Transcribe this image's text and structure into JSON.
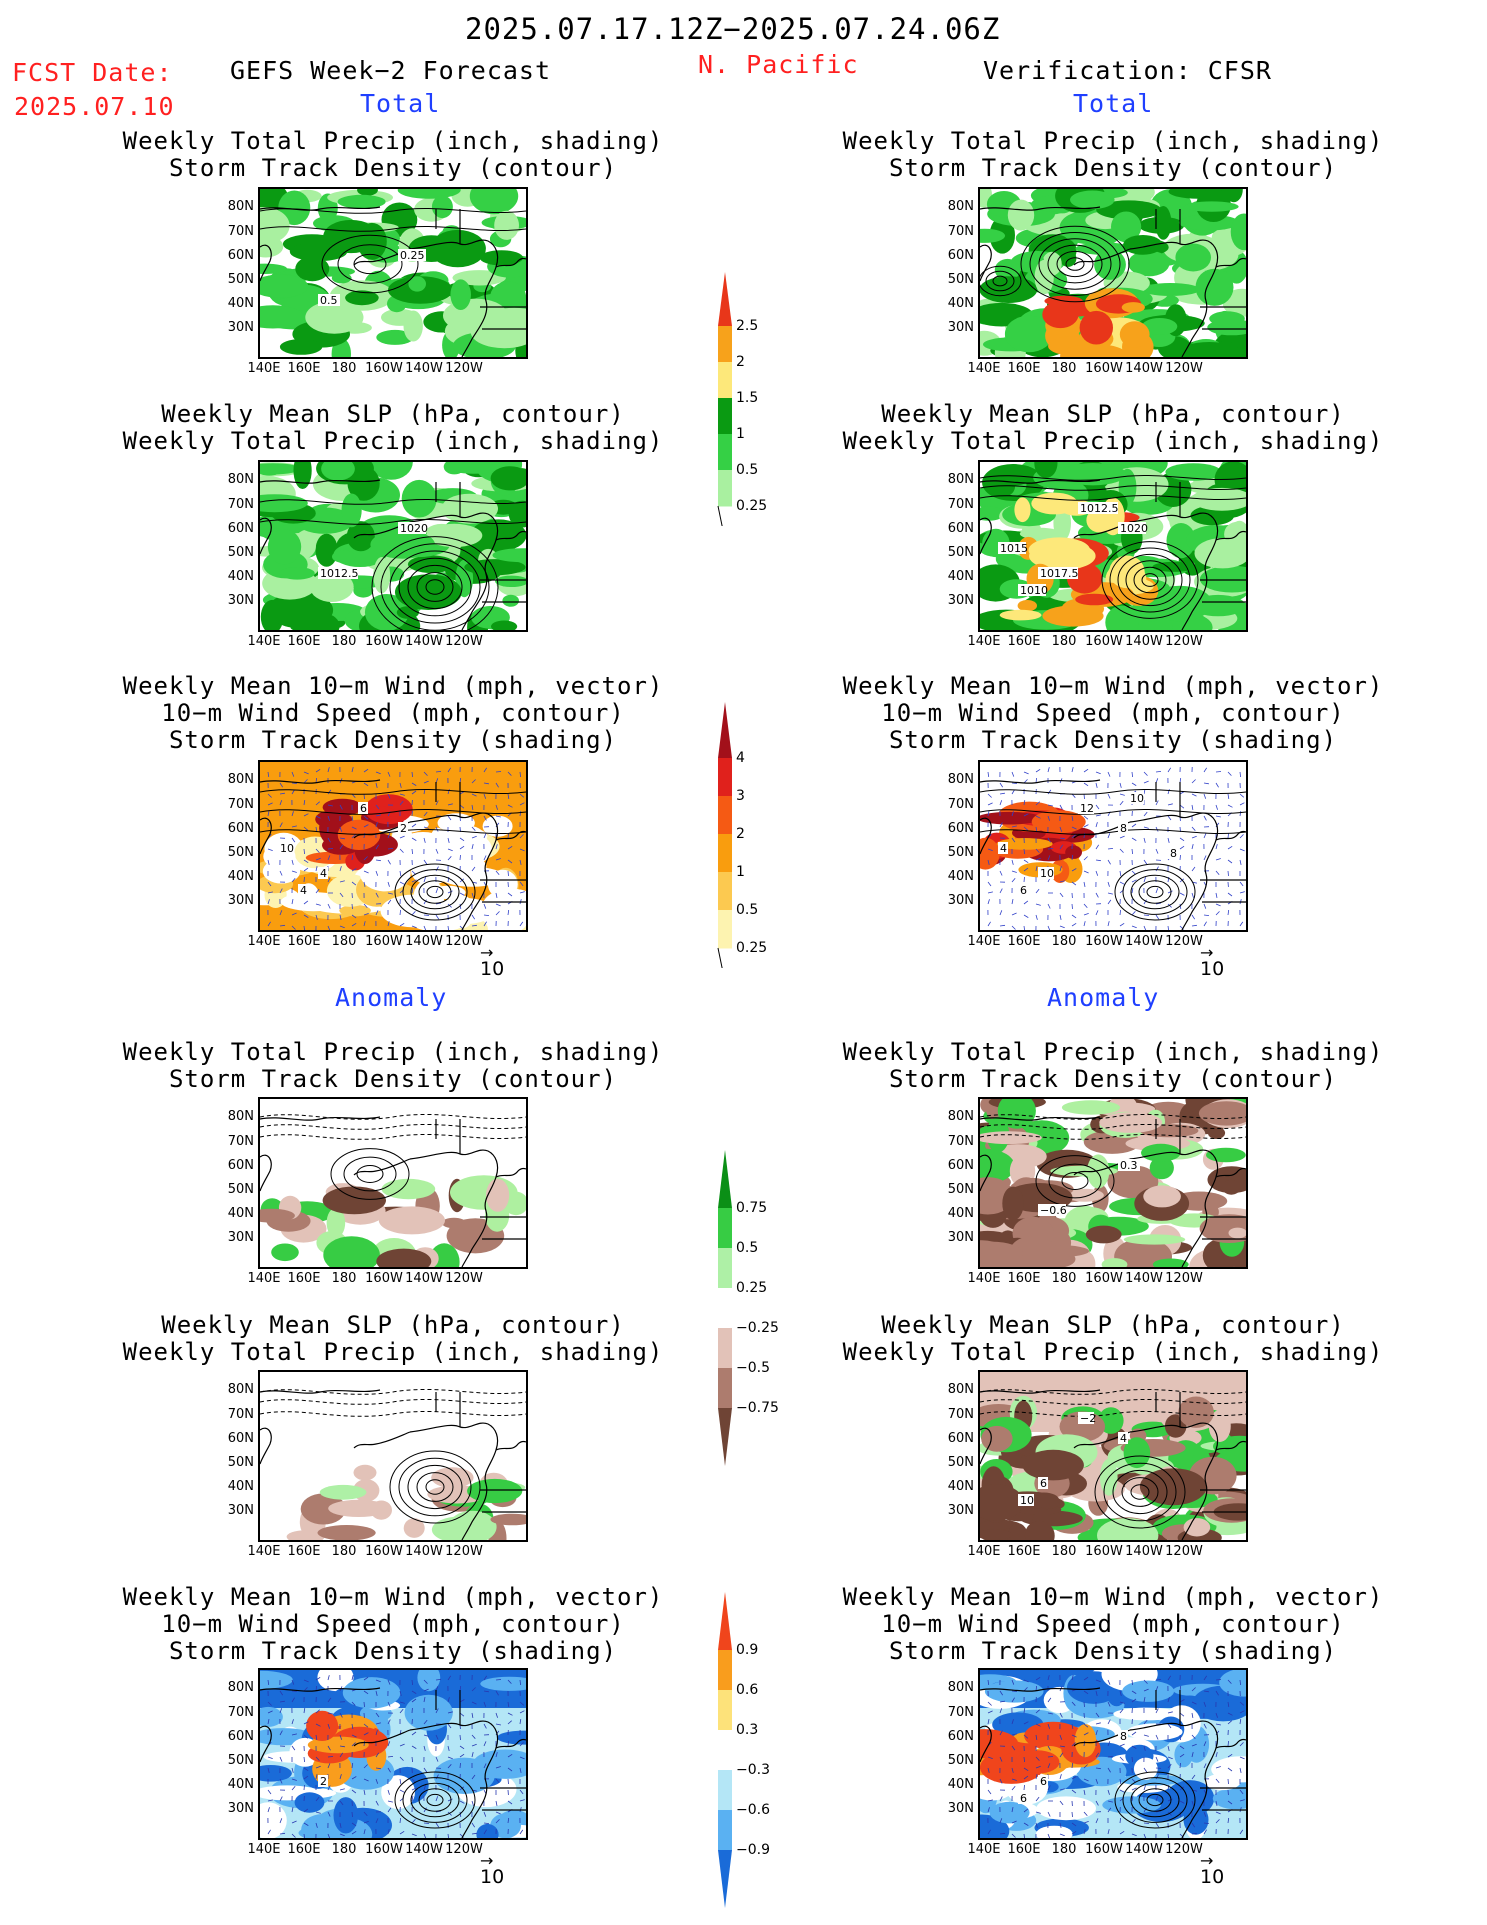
{
  "header": {
    "date_range": "2025.07.17.12Z−2025.07.24.06Z",
    "fcst_label": "FCST Date:",
    "fcst_date": "2025.07.10",
    "left_title": "GEFS Week−2 Forecast",
    "region": "N. Pacific",
    "right_title": "Verification: CFSR"
  },
  "sections": {
    "total": "Total",
    "anomaly": "Anomaly"
  },
  "panel_titles": {
    "precip_storm": [
      "Weekly Total Precip (inch, shading)",
      "Storm Track Density (contour)"
    ],
    "slp_precip": [
      "Weekly Mean SLP (hPa, contour)",
      "Weekly Total Precip (inch, shading)"
    ],
    "wind_storm": [
      "Weekly Mean 10−m Wind (mph, vector)",
      "10−m Wind Speed (mph, contour)",
      "Storm Track Density (shading)"
    ]
  },
  "axes": {
    "lat_labels": [
      "80N",
      "70N",
      "60N",
      "50N",
      "40N",
      "30N"
    ],
    "lon_labels": [
      "140E",
      "160E",
      "180",
      "160W",
      "140W",
      "120W"
    ]
  },
  "vector_ref": "10",
  "colorbars": {
    "precip_total": {
      "labels": [
        "2.5",
        "2",
        "1.5",
        "1",
        "0.5",
        "0.25"
      ],
      "colors": [
        "#e8361a",
        "#f7a21b",
        "#fde87a",
        "#0a9a12",
        "#35d045",
        "#a9f0a0"
      ]
    },
    "storm_total": {
      "labels": [
        "4",
        "3",
        "2",
        "1",
        "0.5",
        "0.25"
      ],
      "colors": [
        "#a2101a",
        "#e0211c",
        "#f55a14",
        "#f99d0e",
        "#fcc950",
        "#fdf3b0"
      ]
    },
    "precip_anom": {
      "labels": [
        "0.75",
        "0.5",
        "0.25",
        "−0.25",
        "−0.5",
        "−0.75"
      ],
      "colors": [
        "#0b8f16",
        "#37cc44",
        "#aef0a6",
        "#ffffff",
        "#e2c2b8",
        "#ad7c6e",
        "#6f4435"
      ]
    },
    "storm_anom": {
      "labels": [
        "0.9",
        "0.6",
        "0.3",
        "−0.3",
        "−0.6",
        "−0.9"
      ],
      "colors": [
        "#f0451c",
        "#f99d1d",
        "#fde27a",
        "#ffffff",
        "#b4e6f6",
        "#5ab1f2",
        "#1a6bd8"
      ]
    }
  },
  "map_labels": {
    "r1_left": [
      "0.5",
      "0.25"
    ],
    "r2_left": [
      "1012.5",
      "1020"
    ],
    "r2_right": [
      "1017.5",
      "1020",
      "1010",
      "1012.5",
      "1015"
    ],
    "r3_left": [
      "4",
      "2",
      "4",
      "6",
      "10"
    ],
    "r3_right": [
      "10",
      "8",
      "6",
      "12",
      "4",
      "8",
      "10"
    ],
    "r4_right": [
      "−0.6",
      "0.3"
    ],
    "r5_right": [
      "6",
      "4",
      "10",
      "−2"
    ],
    "r6_left": [
      "2"
    ],
    "r6_right": [
      "6",
      "8",
      "6"
    ]
  }
}
